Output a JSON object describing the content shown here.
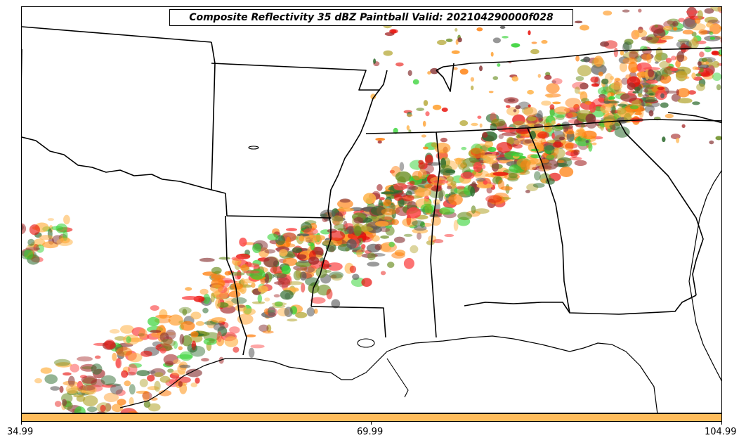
{
  "title": "Composite Reflectivity 35 dBZ Paintball Valid: 202104290000f028",
  "colors": {
    "member_palette": [
      "#ff7f0e",
      "#e8120c",
      "#ffa030",
      "#fb4242",
      "#32d232",
      "#b2a42c",
      "#8b3a3a",
      "#2e6b2e",
      "#ffb347",
      "#5a5a5a",
      "#a52a2a",
      "#6b8e23"
    ],
    "colorbar_fill": "#ffbd5c",
    "boundary_line": "#000000"
  },
  "colorbar": {
    "ticks": [
      "34.99",
      "69.99",
      "104.99"
    ]
  }
}
